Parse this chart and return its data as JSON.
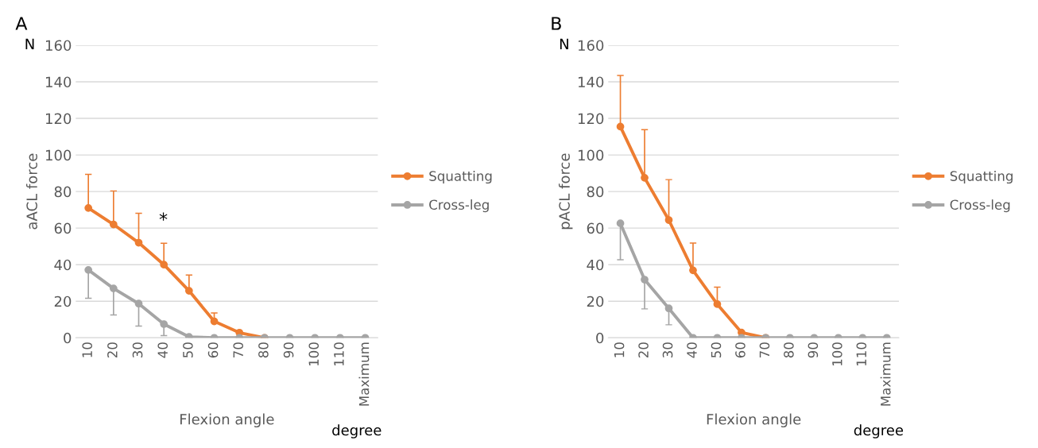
{
  "chart_data": [
    {
      "type": "line",
      "title": "A",
      "xlabel": "Flexion angle",
      "ylabel": "aACL force",
      "categories": [
        "10",
        "20",
        "30",
        "40",
        "50",
        "60",
        "70",
        "80",
        "90",
        "100",
        "110",
        "Maximum"
      ],
      "series": [
        {
          "name": "Squatting",
          "color": "#ed7d31",
          "values": [
            71,
            62,
            52,
            40,
            25.7,
            9,
            2.8,
            0,
            null,
            null,
            null,
            null
          ],
          "errors": [
            [
              71,
              89.4
            ],
            [
              62,
              80.3
            ],
            [
              52,
              68.1
            ],
            [
              40,
              51.7
            ],
            [
              25.7,
              34.3
            ],
            [
              9,
              13.6
            ],
            null,
            null,
            null,
            null,
            null,
            null
          ]
        },
        {
          "name": "Cross-leg",
          "color": "#a5a5a5",
          "values": [
            37.1,
            27,
            18.7,
            7.5,
            0.5,
            0,
            0,
            0,
            0,
            0,
            0,
            0
          ],
          "errors": [
            [
              21.6,
              37.1
            ],
            [
              12.5,
              27
            ],
            [
              6.4,
              18.7
            ],
            [
              1.2,
              7.5
            ],
            null,
            null,
            null,
            null,
            null,
            null,
            null,
            null
          ]
        }
      ],
      "ylim": [
        0,
        160
      ],
      "yticks": [
        0,
        20,
        40,
        60,
        80,
        100,
        120,
        140,
        160
      ],
      "grid": "y",
      "legend": "right",
      "marker": "circle",
      "line_style": "solid",
      "annotations": [
        "N",
        "degree",
        "*"
      ]
    },
    {
      "type": "line",
      "title": "B",
      "xlabel": "Flexion angle",
      "ylabel": "pACL force",
      "categories": [
        "10",
        "20",
        "30",
        "40",
        "50",
        "60",
        "70",
        "80",
        "90",
        "100",
        "110",
        "Maximum"
      ],
      "series": [
        {
          "name": "Squatting",
          "color": "#ed7d31",
          "values": [
            115.5,
            87.5,
            64.4,
            36.9,
            18.4,
            2.9,
            0,
            null,
            null,
            null,
            null,
            null
          ],
          "errors": [
            [
              115.5,
              143.5
            ],
            [
              87.5,
              113.8
            ],
            [
              64.4,
              86.5
            ],
            [
              36.9,
              51.8
            ],
            [
              18.4,
              27.7
            ],
            null,
            null,
            null,
            null,
            null,
            null,
            null
          ]
        },
        {
          "name": "Cross-leg",
          "color": "#a5a5a5",
          "values": [
            62.6,
            31.8,
            16.1,
            0,
            0,
            0,
            0,
            0,
            0,
            0,
            0,
            0
          ],
          "errors": [
            [
              42.7,
              62.6
            ],
            [
              15.8,
              31.8
            ],
            [
              7.1,
              16.1
            ],
            null,
            null,
            null,
            null,
            null,
            null,
            null,
            null,
            null
          ]
        }
      ],
      "ylim": [
        0,
        160
      ],
      "yticks": [
        0,
        20,
        40,
        60,
        80,
        100,
        120,
        140,
        160
      ],
      "grid": "y",
      "legend": "right",
      "marker": "circle",
      "line_style": "solid",
      "annotations": [
        "N",
        "degree"
      ]
    }
  ]
}
